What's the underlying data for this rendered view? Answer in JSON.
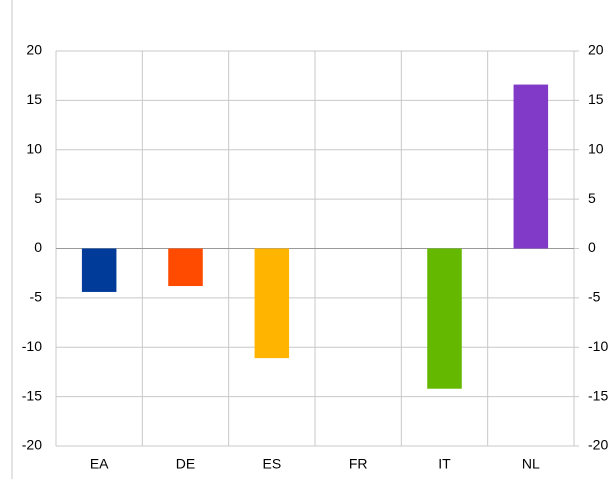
{
  "chart_data": {
    "type": "bar",
    "categories": [
      "EA",
      "DE",
      "ES",
      "FR",
      "IT",
      "NL"
    ],
    "values": [
      -4.4,
      -3.8,
      -11.1,
      0,
      -14.2,
      16.6
    ],
    "colors": [
      "#003b99",
      "#ff4b00",
      "#ffb400",
      "#9a9a9a",
      "#65b800",
      "#8139c7"
    ],
    "ylim": [
      -20,
      20
    ],
    "yticks": [
      -20,
      -15,
      -10,
      -5,
      0,
      5,
      10,
      15,
      20
    ],
    "y2lim": [
      -20,
      20
    ],
    "y2ticks": [
      -20,
      -15,
      -10,
      -5,
      0,
      5,
      10,
      15,
      20
    ],
    "grid": true
  }
}
